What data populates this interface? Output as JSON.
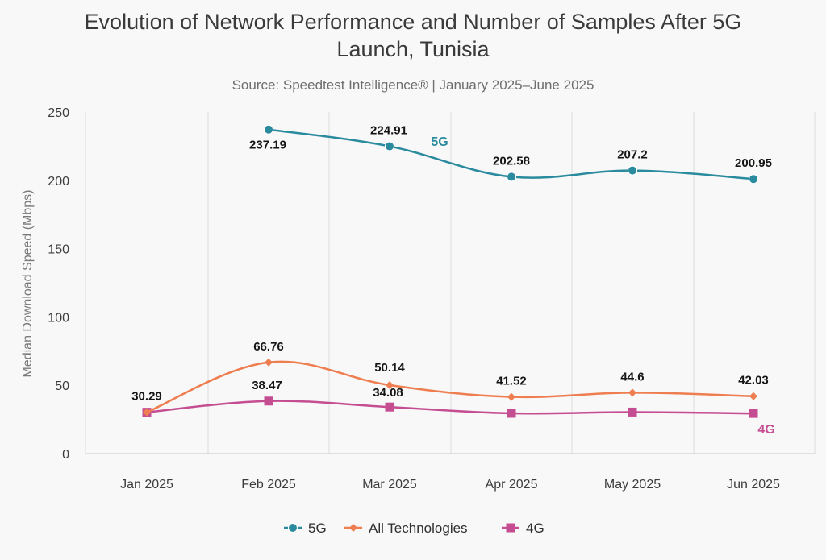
{
  "chart_data": {
    "type": "line",
    "title_lines": [
      "Evolution of Network Performance and Number of Samples After 5G",
      "Launch, Tunisia"
    ],
    "subtitle": "Source: Speedtest Intelligence® | January 2025–June 2025",
    "ylabel": "Median Download Speed (Mbps)",
    "xlabel": "",
    "ylim": [
      0,
      250
    ],
    "yticks": [
      0,
      50,
      100,
      150,
      200,
      250
    ],
    "grid": "vertical",
    "legend_position": "bottom",
    "categories": [
      "Jan 2025",
      "Feb 2025",
      "Mar 2025",
      "Apr 2025",
      "May 2025",
      "Jun 2025"
    ],
    "series": [
      {
        "name": "5G",
        "color": "#2a8a9e",
        "marker": "circle",
        "values": [
          null,
          237.19,
          224.91,
          202.58,
          207.2,
          200.95
        ],
        "labels": [
          "",
          "237.19",
          "224.91",
          "202.58",
          "207.2",
          "200.95"
        ],
        "end_label": "5G"
      },
      {
        "name": "All Technologies",
        "color": "#ee7d4f",
        "marker": "diamond",
        "values": [
          30.29,
          66.76,
          50.14,
          41.52,
          44.6,
          42.03
        ],
        "labels": [
          "30.29",
          "66.76",
          "50.14",
          "41.52",
          "44.6",
          "42.03"
        ]
      },
      {
        "name": "4G",
        "color": "#c54e92",
        "marker": "square",
        "values": [
          30.29,
          38.47,
          34.08,
          29.5,
          30.4,
          29.4
        ],
        "labels": [
          "",
          "38.47",
          "34.08",
          "",
          "",
          ""
        ],
        "end_label": "4G"
      }
    ]
  }
}
